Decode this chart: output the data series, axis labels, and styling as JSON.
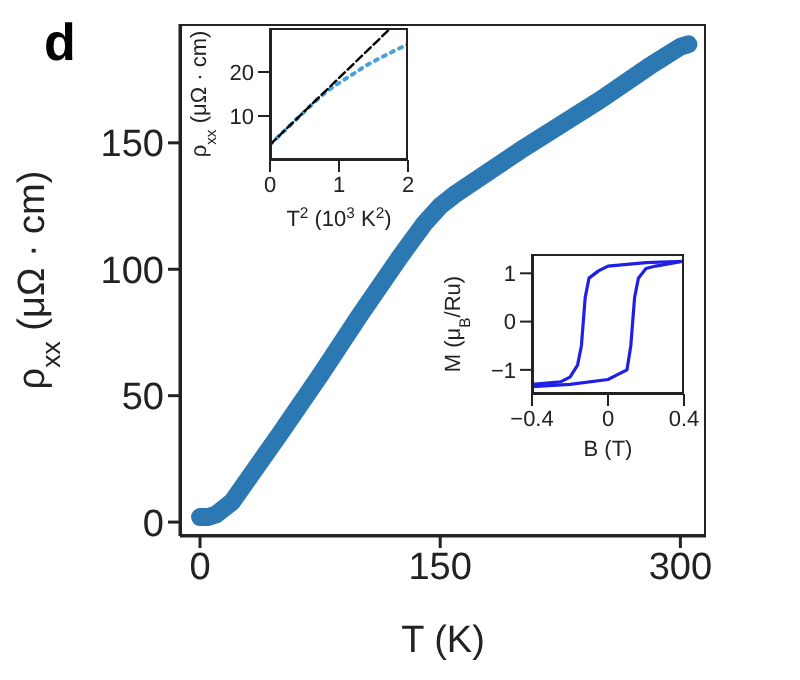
{
  "chart_data": [
    {
      "type": "line",
      "title": "d",
      "xlabel": "T (K)",
      "ylabel": "ρ$_{xx}$ (μΩ · cm)",
      "xlim": [
        -12.5,
        316
      ],
      "ylim": [
        -5.5,
        197
      ],
      "xticks": [
        0,
        150,
        300
      ],
      "yticks": [
        0,
        50,
        100,
        150
      ],
      "grid": false,
      "legend": false,
      "marker": "none",
      "series": [
        {
          "color": "#2b78b3",
          "line_style": "solid",
          "x": [
            0,
            5,
            10,
            20,
            30,
            50,
            75,
            100,
            125,
            140,
            150,
            160,
            200,
            250,
            280,
            300,
            305
          ],
          "values": [
            2,
            2,
            3,
            8,
            17,
            35,
            58,
            82,
            105,
            118,
            125,
            130,
            147,
            167,
            180,
            188,
            189
          ]
        }
      ]
    },
    {
      "type": "line",
      "xlabel": "T$^{2}$ (10$^{3}$ K$^{2}$)",
      "ylabel": "ρ$_{xx}$ (μΩ · cm)",
      "xlim": [
        0,
        2
      ],
      "ylim": [
        0,
        30
      ],
      "xticks": [
        0,
        1,
        2
      ],
      "yticks": [
        10,
        20
      ],
      "grid": false,
      "legend": false,
      "series": [
        {
          "color": "#4aa0d8",
          "line_style": "dotted",
          "x": [
            0,
            0.2,
            0.4,
            0.6,
            0.8,
            1.0,
            1.2,
            1.4,
            1.6,
            1.8,
            2.0
          ],
          "values": [
            3.5,
            6.5,
            9.5,
            12.5,
            15.3,
            17.5,
            19.5,
            21.5,
            23.2,
            24.8,
            26.3
          ]
        },
        {
          "color": "#000000",
          "line_style": "dashed",
          "x": [
            0,
            1.75
          ],
          "values": [
            3.5,
            30
          ]
        }
      ]
    },
    {
      "type": "line",
      "xlabel": "B (T)",
      "ylabel": "M (μ$_{B}$/Ru)",
      "xlim": [
        -0.4,
        0.4
      ],
      "ylim": [
        -1.5,
        1.4
      ],
      "xticks": [
        {
          "value": -0.4,
          "label": "−0.4"
        },
        0,
        0.4
      ],
      "yticks": [
        {
          "value": -1,
          "label": "−1"
        },
        0,
        1
      ],
      "grid": false,
      "legend": false,
      "series": [
        {
          "color": "#1f1fe6",
          "line_style": "solid",
          "x": [
            0.4,
            0.2,
            0,
            -0.05,
            -0.1,
            -0.12,
            -0.13,
            -0.14,
            -0.16,
            -0.2,
            -0.25,
            -0.4
          ],
          "values": [
            1.25,
            1.22,
            1.15,
            1.05,
            0.9,
            0.5,
            0,
            -0.5,
            -0.9,
            -1.15,
            -1.25,
            -1.3
          ]
        },
        {
          "color": "#1f1fe6",
          "line_style": "solid",
          "x": [
            -0.4,
            -0.2,
            0,
            0.05,
            0.1,
            0.12,
            0.13,
            0.14,
            0.16,
            0.2,
            0.25,
            0.4
          ],
          "values": [
            -1.35,
            -1.3,
            -1.2,
            -1.1,
            -1.0,
            -0.5,
            0,
            0.5,
            0.9,
            1.1,
            1.15,
            1.25
          ]
        }
      ]
    }
  ]
}
